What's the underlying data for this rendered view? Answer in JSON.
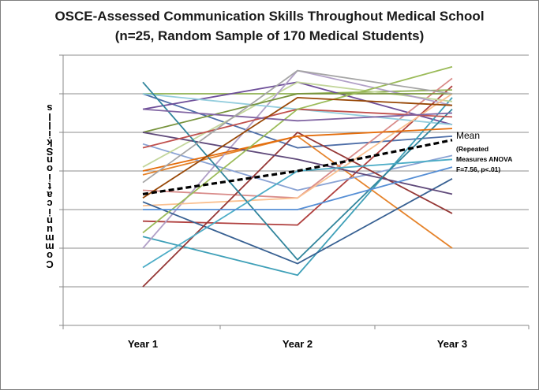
{
  "chart_data": {
    "type": "line",
    "title_lines": [
      "OSCE-Assessed Communication Skills Throughout Medical School",
      "(n=25, Random Sample of 170 Medical Students)"
    ],
    "ylabel": "Communication Skills",
    "categories": [
      "Year 1",
      "Year 2",
      "Year 3"
    ],
    "ylim": [
      0,
      7
    ],
    "grid": true,
    "y_ticks_labeled": false,
    "series": [
      {
        "color": "#4f6fa8",
        "values": [
          6.0,
          4.6,
          4.9
        ]
      },
      {
        "color": "#b0403f",
        "values": [
          2.7,
          2.6,
          6.2
        ]
      },
      {
        "color": "#8fb050",
        "values": [
          6.0,
          6.0,
          6.1
        ]
      },
      {
        "color": "#6e4f99",
        "values": [
          5.6,
          6.3,
          5.2
        ]
      },
      {
        "color": "#3fa0b8",
        "values": [
          2.3,
          1.3,
          5.9
        ]
      },
      {
        "color": "#e5832b",
        "values": [
          3.9,
          4.9,
          2.0
        ]
      },
      {
        "color": "#8aa3d4",
        "values": [
          4.7,
          3.5,
          4.4
        ]
      },
      {
        "color": "#d98c8a",
        "values": [
          3.5,
          3.3,
          6.4
        ]
      },
      {
        "color": "#c3d69b",
        "values": [
          4.1,
          6.3,
          5.8
        ]
      },
      {
        "color": "#b1a0c7",
        "values": [
          2.0,
          6.6,
          5.7
        ]
      },
      {
        "color": "#93cddd",
        "values": [
          6.0,
          5.6,
          5.2
        ]
      },
      {
        "color": "#fac090",
        "values": [
          3.1,
          3.3,
          6.0
        ]
      },
      {
        "color": "#376092",
        "values": [
          3.2,
          1.6,
          3.8
        ]
      },
      {
        "color": "#953735",
        "values": [
          1.0,
          5.0,
          2.9
        ]
      },
      {
        "color": "#77933c",
        "values": [
          5.0,
          6.0,
          6.0
        ]
      },
      {
        "color": "#5f497a",
        "values": [
          5.0,
          4.3,
          3.4
        ]
      },
      {
        "color": "#31859c",
        "values": [
          6.3,
          1.7,
          5.6
        ]
      },
      {
        "color": "#e46c0a",
        "values": [
          4.0,
          4.9,
          5.1
        ]
      },
      {
        "color": "#4bacc6",
        "values": [
          1.5,
          4.0,
          4.3
        ]
      },
      {
        "color": "#c0504d",
        "values": [
          4.6,
          5.6,
          5.4
        ]
      },
      {
        "color": "#9bbb59",
        "values": [
          2.4,
          5.6,
          6.7
        ]
      },
      {
        "color": "#8064a2",
        "values": [
          5.6,
          5.3,
          5.5
        ]
      },
      {
        "color": "#558ed5",
        "values": [
          3.0,
          3.0,
          4.1
        ]
      },
      {
        "color": "#a5a5a5",
        "values": [
          3.7,
          6.6,
          6.0
        ]
      },
      {
        "color": "#984807",
        "values": [
          3.3,
          5.9,
          5.7
        ]
      }
    ],
    "mean": {
      "name": "Mean",
      "values": [
        3.4,
        4.0,
        4.8
      ],
      "color": "#000000",
      "style": "dashed",
      "note_lines": [
        "(Repeated",
        "Measures ANOVA",
        "F=7.56, p<.01)"
      ]
    }
  }
}
